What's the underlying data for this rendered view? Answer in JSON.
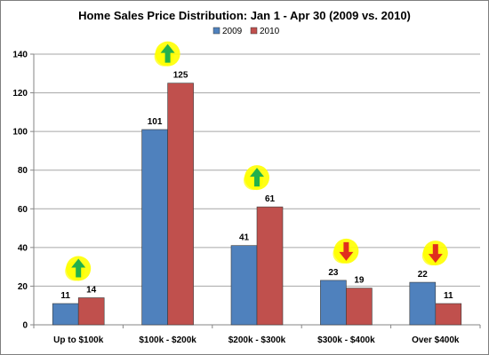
{
  "chart_data": {
    "type": "bar",
    "title": "Home Sales Price Distribution: Jan 1 - Apr 30 (2009 vs. 2010)",
    "xlabel": "",
    "ylabel": "",
    "categories": [
      "Up to $100k",
      "$100k - $200k",
      "$200k - $300k",
      "$300k - $400k",
      "Over $400k"
    ],
    "series": [
      {
        "name": "2009",
        "values": [
          11,
          101,
          41,
          23,
          22
        ],
        "color": "#4f81bd"
      },
      {
        "name": "2010",
        "values": [
          14,
          125,
          61,
          19,
          11
        ],
        "color": "#c0504d"
      }
    ],
    "ylim": [
      0,
      140
    ],
    "yticks": [
      0,
      20,
      40,
      60,
      80,
      100,
      120,
      140
    ],
    "grid": true,
    "legend_position": "top-right",
    "annotations": [
      {
        "category": "Up to $100k",
        "direction": "up"
      },
      {
        "category": "$100k - $200k",
        "direction": "up"
      },
      {
        "category": "$200k - $300k",
        "direction": "up"
      },
      {
        "category": "$300k - $400k",
        "direction": "down"
      },
      {
        "category": "Over $400k",
        "direction": "down"
      }
    ],
    "annotation_colors": {
      "up": "#22b14c",
      "down": "#e0301e",
      "highlight": "#ffff00"
    }
  }
}
